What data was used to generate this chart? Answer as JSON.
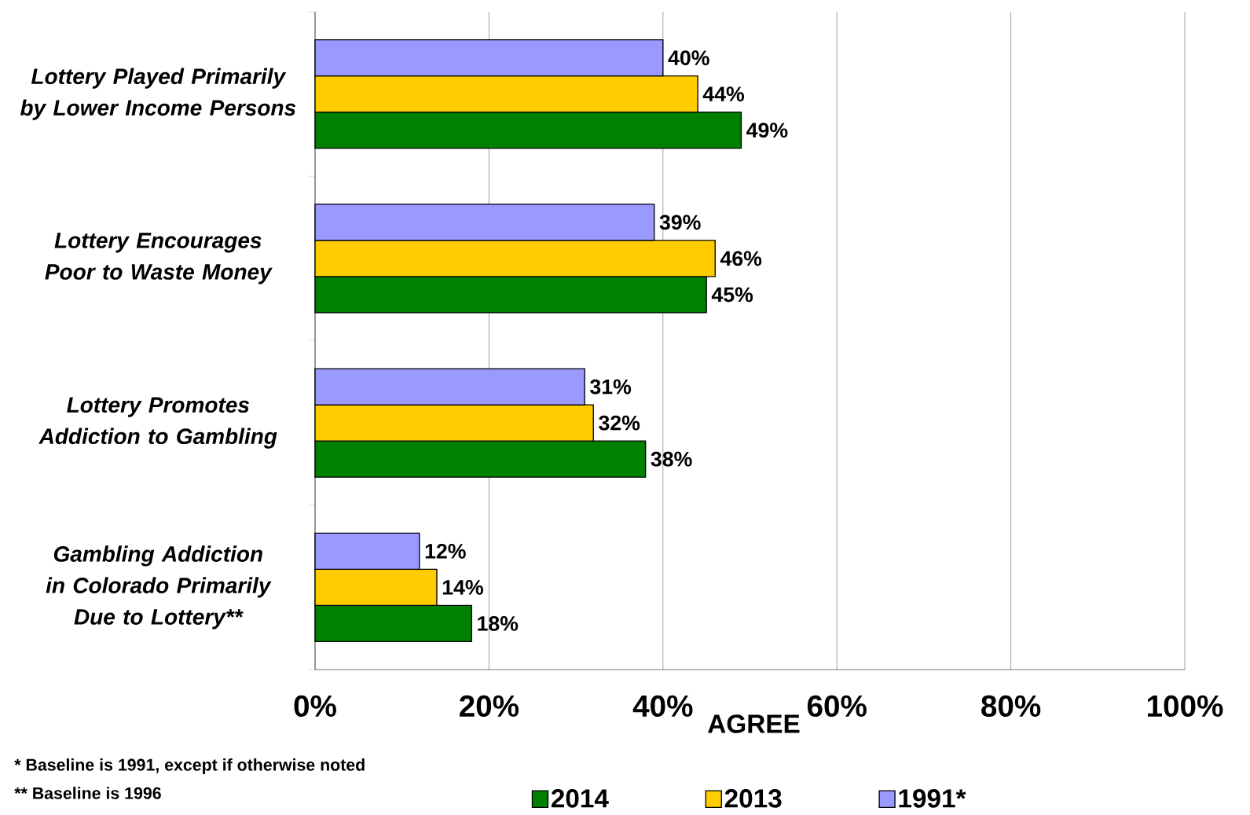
{
  "chart_data": {
    "type": "bar",
    "orientation": "horizontal",
    "xlabel": "AGREE",
    "categories": [
      "Lottery Played Primarily by Lower Income Persons",
      "Lottery Encourages Poor to Waste Money",
      "Lottery Promotes Addiction to Gambling",
      "Gambling Addiction in Colorado Primarily Due to Lottery**"
    ],
    "series": [
      {
        "name": "2014",
        "color": "#008000",
        "values": [
          49,
          45,
          38,
          18
        ],
        "value_labels": [
          "49%",
          "45%",
          "38%",
          "18%"
        ]
      },
      {
        "name": "2013",
        "color": "#ffcc00",
        "values": [
          44,
          46,
          32,
          14
        ],
        "value_labels": [
          "44%",
          "46%",
          "32%",
          "14%"
        ]
      },
      {
        "name": "1991*",
        "color": "#9999ff",
        "values": [
          40,
          39,
          31,
          12
        ],
        "value_labels": [
          "40%",
          "39%",
          "31%",
          "12%"
        ]
      }
    ],
    "xlim": [
      0,
      100
    ],
    "xticks": [
      {
        "value": 0,
        "label": "0%"
      },
      {
        "value": 20,
        "label": "20%"
      },
      {
        "value": 40,
        "label": "40%"
      },
      {
        "value": 60,
        "label": "60%"
      },
      {
        "value": 80,
        "label": "80%"
      },
      {
        "value": 100,
        "label": "100%"
      }
    ],
    "grid": "x",
    "legend": "bottom",
    "annotations": [
      "*  Baseline is 1991, except if otherwise noted",
      "** Baseline is 1996"
    ]
  }
}
